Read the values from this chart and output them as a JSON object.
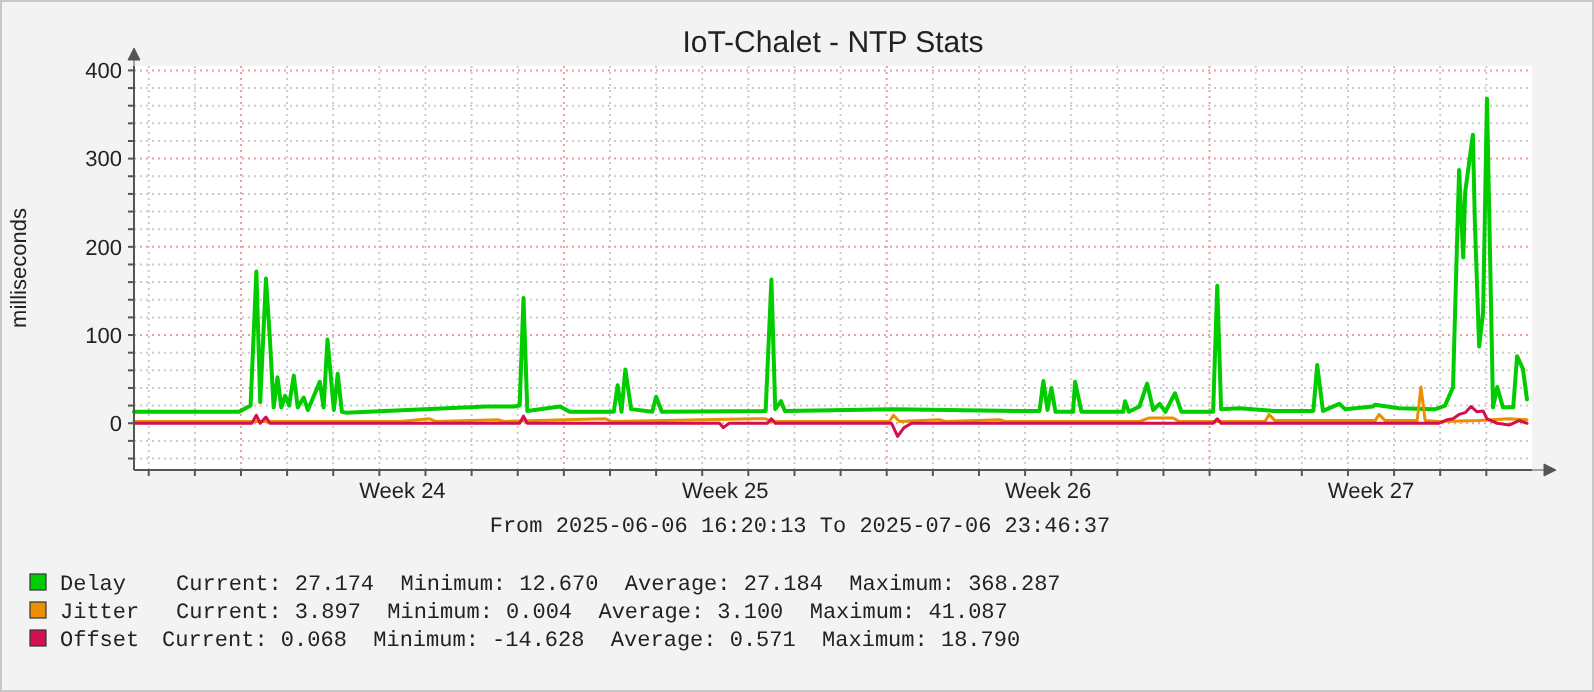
{
  "chart_data": {
    "type": "line",
    "title": "IoT-Chalet - NTP Stats",
    "ylabel": "milliseconds",
    "xlim": [
      "2025-06-06T16:20",
      "2025-07-06T23:46"
    ],
    "xticks": [
      {
        "value": "2025-06-07",
        "label": null
      },
      {
        "value": "2025-06-08",
        "label": null
      },
      {
        "value": "2025-06-09",
        "label": null
      },
      {
        "value": "2025-06-10",
        "label": null
      },
      {
        "value": "2025-06-11",
        "label": null
      },
      {
        "value": "2025-06-12",
        "label": null
      },
      {
        "value": "2025-06-12T12:00",
        "label": "Week 24"
      },
      {
        "value": "2025-06-13",
        "label": null
      },
      {
        "value": "2025-06-14",
        "label": null
      },
      {
        "value": "2025-06-15",
        "label": null
      },
      {
        "value": "2025-06-16",
        "label": null
      },
      {
        "value": "2025-06-17",
        "label": null
      },
      {
        "value": "2025-06-18",
        "label": null
      },
      {
        "value": "2025-06-19",
        "label": null
      },
      {
        "value": "2025-06-19T12:00",
        "label": "Week 25"
      },
      {
        "value": "2025-06-20",
        "label": null
      },
      {
        "value": "2025-06-21",
        "label": null
      },
      {
        "value": "2025-06-22",
        "label": null
      },
      {
        "value": "2025-06-23",
        "label": null
      },
      {
        "value": "2025-06-24",
        "label": null
      },
      {
        "value": "2025-06-25",
        "label": null
      },
      {
        "value": "2025-06-26",
        "label": null
      },
      {
        "value": "2025-06-26T12:00",
        "label": "Week 26"
      },
      {
        "value": "2025-06-27",
        "label": null
      },
      {
        "value": "2025-06-28",
        "label": null
      },
      {
        "value": "2025-06-29",
        "label": null
      },
      {
        "value": "2025-06-30",
        "label": null
      },
      {
        "value": "2025-07-01",
        "label": null
      },
      {
        "value": "2025-07-02",
        "label": null
      },
      {
        "value": "2025-07-03",
        "label": null
      },
      {
        "value": "2025-07-03T12:00",
        "label": "Week 27"
      },
      {
        "value": "2025-07-04",
        "label": null
      },
      {
        "value": "2025-07-05",
        "label": null
      },
      {
        "value": "2025-07-06",
        "label": null
      }
    ],
    "ylim": [
      -53,
      405
    ],
    "yticks": [
      {
        "value": -40,
        "label": null
      },
      {
        "value": -20,
        "label": null
      },
      0,
      {
        "value": 20,
        "label": null
      },
      {
        "value": 40,
        "label": null
      },
      {
        "value": 60,
        "label": null
      },
      {
        "value": 80,
        "label": null
      },
      100,
      {
        "value": 120,
        "label": null
      },
      {
        "value": 140,
        "label": null
      },
      {
        "value": 160,
        "label": null
      },
      {
        "value": 180,
        "label": null
      },
      200,
      {
        "value": 220,
        "label": null
      },
      {
        "value": 240,
        "label": null
      },
      {
        "value": 260,
        "label": null
      },
      {
        "value": 280,
        "label": null
      },
      300,
      {
        "value": 320,
        "label": null
      },
      {
        "value": 340,
        "label": null
      },
      {
        "value": 360,
        "label": null
      },
      {
        "value": 380,
        "label": null
      },
      400
    ],
    "grid": true,
    "legend": "bottom",
    "line_style": "solid",
    "marker": "none",
    "series": [
      {
        "name": "Delay",
        "color": "#00cc00",
        "x": [
          "2025-06-06T16:20",
          "2025-06-08T23:00",
          "2025-06-09T05:00",
          "2025-06-09T08:00",
          "2025-06-09T10:00",
          "2025-06-09T13:00",
          "2025-06-09T15:00",
          "2025-06-09T17:00",
          "2025-06-09T19:00",
          "2025-06-09T21:00",
          "2025-06-09T23:00",
          "2025-06-10T01:00",
          "2025-06-10T03:30",
          "2025-06-10T05:30",
          "2025-06-10T08:40",
          "2025-06-10T10:50",
          "2025-06-10T17:00",
          "2025-06-10T19:00",
          "2025-06-10T21:00",
          "2025-06-11T00:20",
          "2025-06-11T02:20",
          "2025-06-11T04:30",
          "2025-06-11T06:30",
          "2025-06-14T07:30",
          "2025-06-14T22:00",
          "2025-06-15T01:00",
          "2025-06-15T03:00",
          "2025-06-15T05:00",
          "2025-06-15T22:00",
          "2025-06-16T03:00",
          "2025-06-17T02:00",
          "2025-06-17T04:00",
          "2025-06-17T06:00",
          "2025-06-17T08:00",
          "2025-06-17T11:00",
          "2025-06-17T22:00",
          "2025-06-18T00:00",
          "2025-06-18T03:00",
          "2025-06-20T09:00",
          "2025-06-20T12:00",
          "2025-06-20T14:00",
          "2025-06-20T17:00",
          "2025-06-20T19:00",
          "2025-06-23T03:30",
          "2025-06-25T21:00",
          "2025-06-26T07:30",
          "2025-06-26T09:30",
          "2025-06-26T11:40",
          "2025-06-26T13:40",
          "2025-06-26T15:50",
          "2025-06-27T01:00",
          "2025-06-27T02:00",
          "2025-06-27T05:20",
          "2025-06-28T03:00",
          "2025-06-28T04:00",
          "2025-06-28T06:00",
          "2025-06-28T11:30",
          "2025-06-28T15:30",
          "2025-06-28T18:40",
          "2025-06-28T22:00",
          "2025-06-29T01:00",
          "2025-06-29T06:00",
          "2025-06-29T09:20",
          "2025-06-30T01:50",
          "2025-06-30T04:00",
          "2025-06-30T06:00",
          "2025-06-30T15:30",
          "2025-07-01T09:00",
          "2025-07-02T06:00",
          "2025-07-02T08:00",
          "2025-07-02T11:00",
          "2025-07-02T19:30",
          "2025-07-02T22:30",
          "2025-07-03T13:00",
          "2025-07-03T14:00",
          "2025-07-04T02:40",
          "2025-07-04T21:30",
          "2025-07-05T02:30",
          "2025-07-05T06:40",
          "2025-07-05T07:50",
          "2025-07-05T09:50",
          "2025-07-05T12:00",
          "2025-07-05T13:00",
          "2025-07-05T17:00",
          "2025-07-05T18:00",
          "2025-07-05T20:15",
          "2025-07-05T22:20",
          "2025-07-06T00:20",
          "2025-07-06T03:30",
          "2025-07-06T05:40",
          "2025-07-06T08:40",
          "2025-07-06T14:00",
          "2025-07-06T16:00",
          "2025-07-06T19:00",
          "2025-07-06T21:10"
        ],
        "values": [
          13,
          13,
          20,
          172,
          24,
          164,
          97,
          18,
          52,
          18,
          31,
          20,
          54,
          18,
          29,
          15,
          47,
          18,
          95,
          15,
          56,
          13,
          12,
          19,
          19,
          20,
          142,
          14,
          19,
          13,
          13,
          43,
          13,
          61,
          16,
          13,
          30,
          13,
          14,
          163,
          16,
          25,
          14,
          16,
          14,
          14,
          48,
          15,
          40,
          13,
          13,
          47,
          13,
          13,
          25,
          13,
          19,
          45,
          15,
          22,
          13,
          34,
          13,
          13,
          156,
          16,
          17,
          14,
          14,
          66,
          14,
          22,
          16,
          19,
          21,
          17,
          16,
          20,
          41,
          133,
          287,
          188,
          262,
          327,
          231,
          87,
          126,
          368,
          18,
          41,
          18,
          18,
          76,
          62,
          27
        ]
      },
      {
        "name": "Jitter",
        "color": "#ea8f00",
        "x": [
          "2025-06-06T16:20",
          "2025-06-12T10:40",
          "2025-06-13T02:10",
          "2025-06-13T05:20",
          "2025-06-14T13:40",
          "2025-06-14T16:40",
          "2025-06-16T21:40",
          "2025-06-17T00:50",
          "2025-06-20T03:40",
          "2025-06-20T09:00",
          "2025-06-20T12:00",
          "2025-06-23T01:20",
          "2025-06-23T03:30",
          "2025-06-23T06:40",
          "2025-06-24T03:20",
          "2025-06-24T06:30",
          "2025-06-25T10:40",
          "2025-06-25T13:40",
          "2025-06-28T11:30",
          "2025-06-28T16:40",
          "2025-06-29T05:00",
          "2025-06-29T08:10",
          "2025-07-01T04:50",
          "2025-07-01T07:00",
          "2025-07-01T10:00",
          "2025-07-03T14:10",
          "2025-07-03T16:10",
          "2025-07-03T19:20",
          "2025-07-04T12:00",
          "2025-07-04T14:00",
          "2025-07-04T16:10",
          "2025-07-04T23:30",
          "2025-07-05T20:10",
          "2025-07-06T11:50",
          "2025-07-06T21:10"
        ],
        "values": [
          2,
          2,
          5,
          2,
          4,
          2,
          5,
          2,
          5,
          5,
          2,
          2,
          9,
          2,
          4,
          2,
          4,
          2,
          2,
          6,
          6,
          2,
          2,
          10,
          3,
          3,
          10,
          3,
          3,
          41,
          3,
          2,
          3,
          5,
          4
        ]
      },
      {
        "name": "Offset",
        "color": "#d0104f",
        "x": [
          "2025-06-06T16:20",
          "2025-06-09T05:40",
          "2025-06-09T08:00",
          "2025-06-09T10:00",
          "2025-06-09T13:00",
          "2025-06-09T15:00",
          "2025-06-15T01:00",
          "2025-06-15T03:00",
          "2025-06-15T05:00",
          "2025-06-19T09:00",
          "2025-06-19T11:00",
          "2025-06-19T14:00",
          "2025-06-20T10:00",
          "2025-06-20T12:00",
          "2025-06-20T14:00",
          "2025-06-23T02:30",
          "2025-06-23T05:40",
          "2025-06-23T09:00",
          "2025-06-23T13:00",
          "2025-06-30T01:50",
          "2025-06-30T04:00",
          "2025-06-30T06:00",
          "2025-07-04T23:30",
          "2025-07-05T03:40",
          "2025-07-05T06:40",
          "2025-07-05T09:50",
          "2025-07-05T13:00",
          "2025-07-05T16:00",
          "2025-07-05T19:10",
          "2025-07-05T22:20",
          "2025-07-06T00:20",
          "2025-07-06T05:40",
          "2025-07-06T11:50",
          "2025-07-06T17:00",
          "2025-07-06T21:10"
        ],
        "values": [
          0,
          0,
          9,
          0,
          7,
          0,
          0,
          8,
          0,
          0,
          -5,
          0,
          0,
          5,
          0,
          0,
          -15,
          -5,
          0,
          0,
          5,
          0,
          0,
          4,
          5,
          10,
          12,
          19,
          13,
          14,
          5,
          0,
          -2,
          3,
          0
        ]
      }
    ],
    "annotations": [
      "From 2025-06-06 16:20:13 To 2025-07-06 23:46:37",
      "Current: 27.174  Minimum: 12.670  Average: 27.184  Maximum: 368.287",
      "Current: 3.897  Minimum: 0.004  Average: 3.100  Maximum: 41.087",
      "Current: 0.068  Minimum: -14.628  Average: 0.571  Maximum: 18.790"
    ]
  }
}
